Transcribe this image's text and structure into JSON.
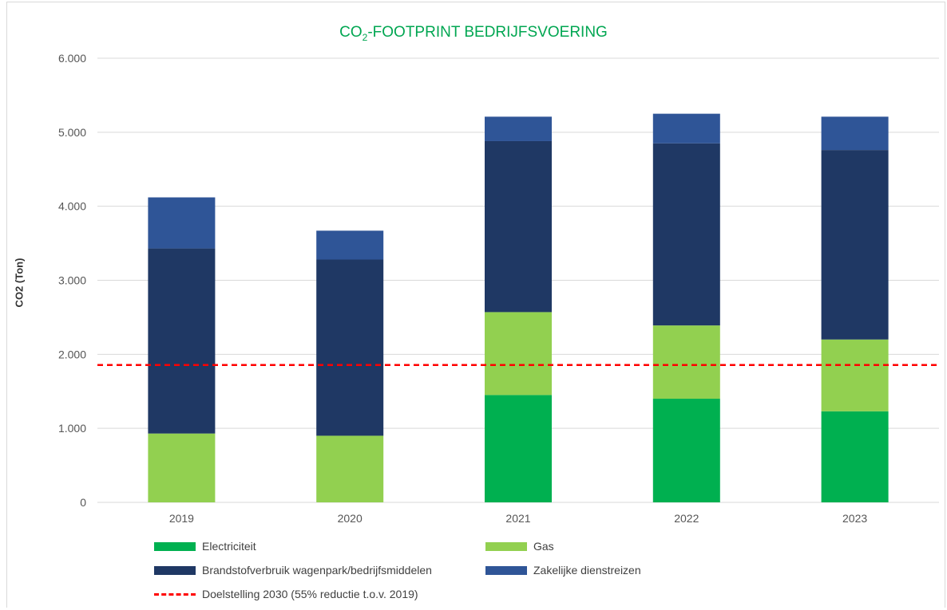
{
  "chart_data": {
    "type": "bar",
    "stacked": true,
    "title_main": "CO",
    "title_sub": "2",
    "title_rest": "-FOOTPRINT BEDRIJFSVOERING",
    "ylabel": "CO2 (Ton)",
    "xlabel": "",
    "ylim": [
      0,
      6000
    ],
    "grid": true,
    "y_ticks": [
      "0",
      "1.000",
      "2.000",
      "3.000",
      "4.000",
      "5.000",
      "6.000"
    ],
    "y_tick_values": [
      0,
      1000,
      2000,
      3000,
      4000,
      5000,
      6000
    ],
    "categories": [
      "2019",
      "2020",
      "2021",
      "2022",
      "2023"
    ],
    "series": [
      {
        "name": "Electriciteit",
        "color": "#00b050",
        "values": [
          0,
          0,
          1450,
          1400,
          1230
        ]
      },
      {
        "name": "Gas",
        "color": "#92d050",
        "values": [
          930,
          900,
          1120,
          990,
          970
        ]
      },
      {
        "name": "Brandstofverbruik wagenpark/bedrijfsmiddelen",
        "color": "#1f3864",
        "values": [
          2500,
          2380,
          2310,
          2460,
          2560
        ]
      },
      {
        "name": "Zakelijke dienstreizen",
        "color": "#2f5597",
        "values": [
          690,
          390,
          330,
          400,
          450
        ]
      }
    ],
    "target_line": {
      "name": "Doelstelling  2030 (55% reductie t.o.v. 2019)",
      "value": 1855,
      "color": "#ff0000"
    },
    "legend_position": "bottom"
  }
}
